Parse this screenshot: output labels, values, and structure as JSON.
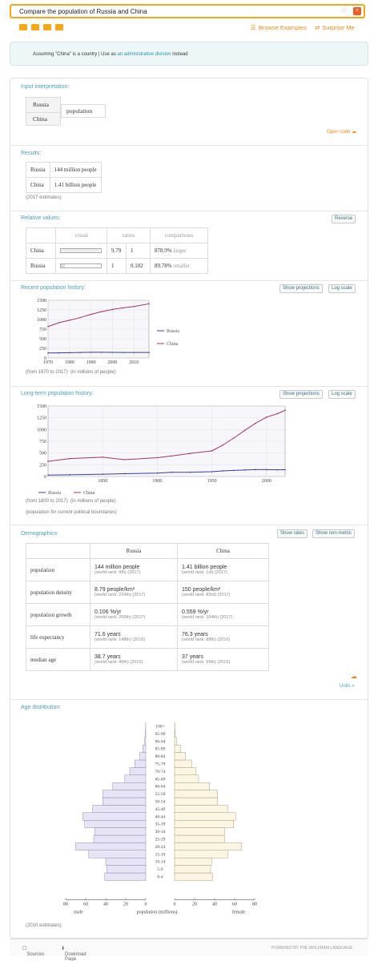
{
  "search": {
    "query": "Compare the population of Russia and China"
  },
  "header": {
    "browse_label": "Browse Examples",
    "surprise_label": "Surprise Me"
  },
  "assumption": {
    "text_prefix": "Assuming \"China\" is a country | Use as",
    "link": "an administrative division",
    "text_suffix": "instead"
  },
  "input_interpretation": {
    "title": "Input interpretation:",
    "countries": [
      "Russia",
      "China"
    ],
    "property": "population",
    "open_code": "Open code"
  },
  "results": {
    "title": "Results:",
    "rows": [
      {
        "name": "Russia",
        "value": "144 million people"
      },
      {
        "name": "China",
        "value": "1.41 billion people"
      }
    ],
    "note": "(2017 estimates)"
  },
  "relative_values": {
    "title": "Relative values:",
    "reverse_label": "Reverse",
    "headers": {
      "visual": "visual",
      "ratios": "ratios",
      "comparisons": "comparisons"
    },
    "rows": [
      {
        "name": "China",
        "ratio1": "9.79",
        "ratio2": "1",
        "pct": "878.9%",
        "word": "larger",
        "fill": 0.96
      },
      {
        "name": "Russia",
        "ratio1": "1",
        "ratio2": "0.102",
        "pct": "89.78%",
        "word": "smaller",
        "fill": 0.1
      }
    ]
  },
  "recent_history": {
    "title": "Recent population history:",
    "show_projections": "Show projections",
    "log_scale": "Log scale",
    "note1": "(from 1970 to 2017)",
    "note2": "(in millions of people)"
  },
  "longterm_history": {
    "title": "Long-term population history:",
    "show_projections": "Show projections",
    "log_scale": "Log scale",
    "note1": "(from 1800 to 2017)",
    "note2": "(in millions of people)",
    "note3": "(population for current political boundaries)"
  },
  "demographics": {
    "title": "Demographics:",
    "show_rates": "Show rates",
    "show_nonmetric": "Show non-metric",
    "headers": [
      "Russia",
      "China"
    ],
    "rows": [
      {
        "label": "population",
        "r_val": "144 million people",
        "r_rank": "(world rank: 9th)",
        "r_year": "(2017)",
        "c_val": "1.41 billion people",
        "c_rank": "(world rank: 1st)",
        "c_year": "(2017)"
      },
      {
        "label": "population density",
        "r_val": "8.79 people/km²",
        "r_rank": "(world rank: 224th)",
        "r_year": "(2017)",
        "c_val": "150 people/km²",
        "c_rank": "(world rank: 83rd)",
        "c_year": "(2017)"
      },
      {
        "label": "population growth",
        "r_val": "0.106 %/yr",
        "r_rank": "(world rank: 200th)",
        "r_year": "(2017)",
        "c_val": "0.559 %/yr",
        "c_rank": "(world rank: 164th)",
        "c_year": "(2017)"
      },
      {
        "label": "life expectancy",
        "r_val": "71.6 years",
        "r_rank": "(world rank: 148th)",
        "r_year": "(2016)",
        "c_val": "76.3 years",
        "c_rank": "(world rank: 88th)",
        "c_year": "(2016)"
      },
      {
        "label": "median age",
        "r_val": "38.7 years",
        "r_rank": "(world rank: 45th)",
        "r_year": "(2015)",
        "c_val": "37 years",
        "c_rank": "(world rank: 55th)",
        "c_year": "(2015)"
      }
    ],
    "units_label": "Units »"
  },
  "age_distribution": {
    "title": "Age distribution:",
    "note": "(2010 estimates)"
  },
  "footer": {
    "sources": "Sources",
    "download": "Download Page",
    "powered": "POWERED BY THE WOLFRAM LANGUAGE"
  },
  "colors": {
    "russia": "#3c3c9c",
    "china": "#9c3c5c",
    "accent": "#f08a1c",
    "title": "#4f9eae"
  },
  "chart_data": [
    {
      "type": "line",
      "title": "",
      "x": [
        1970,
        1975,
        1980,
        1985,
        1990,
        1995,
        2000,
        2005,
        2010,
        2017
      ],
      "series": [
        {
          "name": "Russia",
          "values": [
            130,
            134,
            139,
            143,
            148,
            148,
            146,
            143,
            143,
            144
          ]
        },
        {
          "name": "China",
          "values": [
            818,
            916,
            981,
            1051,
            1135,
            1205,
            1263,
            1304,
            1338,
            1410
          ]
        }
      ],
      "xlim": [
        1970,
        2017
      ],
      "ylim": [
        0,
        1500
      ],
      "yticks": [
        0,
        250,
        500,
        750,
        1000,
        1250,
        1500
      ],
      "xticks": [
        1970,
        1980,
        1990,
        2000,
        2010
      ],
      "legend": "right"
    },
    {
      "type": "line",
      "title": "",
      "x": [
        1800,
        1820,
        1850,
        1870,
        1900,
        1913,
        1930,
        1950,
        1960,
        1970,
        1980,
        1990,
        2000,
        2010,
        2017
      ],
      "series": [
        {
          "name": "Russia",
          "values": [
            30,
            37,
            50,
            60,
            72,
            90,
            90,
            103,
            120,
            130,
            139,
            148,
            146,
            143,
            144
          ]
        },
        {
          "name": "China",
          "values": [
            321,
            381,
            412,
            358,
            400,
            437,
            490,
            546,
            667,
            818,
            981,
            1135,
            1263,
            1338,
            1410
          ]
        }
      ],
      "xlim": [
        1800,
        2017
      ],
      "ylim": [
        0,
        1500
      ],
      "yticks": [
        0,
        250,
        500,
        750,
        1000,
        1250,
        1500
      ],
      "xticks": [
        1850,
        1900,
        1950,
        2000
      ],
      "legend": "bottom"
    },
    {
      "type": "bar",
      "title": "",
      "categories": [
        "0-4",
        "5-9",
        "10-14",
        "15-19",
        "20-24",
        "25-29",
        "30-34",
        "35-39",
        "40-44",
        "45-49",
        "50-54",
        "55-59",
        "60-64",
        "65-69",
        "70-74",
        "75-79",
        "80-84",
        "85-89",
        "90-94",
        "95-99",
        "100+"
      ],
      "series": [
        {
          "name": "male",
          "values": [
            41,
            39,
            40,
            57,
            70,
            52,
            51,
            61,
            63,
            53,
            43,
            43,
            33,
            21,
            16,
            11,
            6,
            3,
            1,
            0.3,
            0.1
          ]
        },
        {
          "name": "female",
          "values": [
            38,
            36,
            37,
            53,
            67,
            50,
            50,
            59,
            61,
            53,
            43,
            43,
            35,
            24,
            21,
            17,
            11,
            6,
            2,
            0.6,
            0.2
          ]
        }
      ],
      "xticks": [
        80,
        60,
        40,
        20,
        0,
        20,
        40,
        60,
        80
      ],
      "xlabel": "population (millions)",
      "left_label": "male",
      "right_label": "female"
    }
  ]
}
